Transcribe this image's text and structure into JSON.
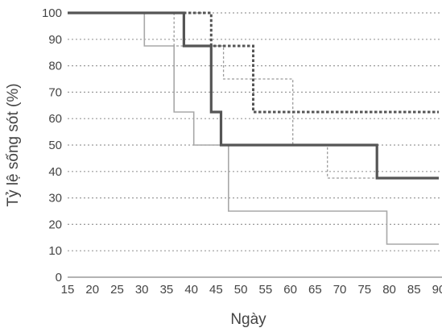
{
  "chart_data": {
    "type": "line",
    "step": true,
    "title": "",
    "xlabel": "Ngày",
    "ylabel": "Tỷ lệ sống sót (%)",
    "xlim": [
      15,
      90
    ],
    "ylim": [
      0,
      100
    ],
    "xticks": [
      15,
      20,
      25,
      30,
      35,
      40,
      45,
      50,
      55,
      60,
      65,
      70,
      75,
      80,
      85,
      90
    ],
    "yticks": [
      0,
      10,
      20,
      30,
      40,
      50,
      60,
      70,
      80,
      90,
      100
    ],
    "grid": "horizontal-dotted",
    "legend": "none",
    "series": [
      {
        "style": "solid-thick",
        "color": "#555555",
        "points": [
          [
            15,
            100
          ],
          [
            38.5,
            100
          ],
          [
            38.5,
            87.5
          ],
          [
            44,
            87.5
          ],
          [
            44,
            62.5
          ],
          [
            46,
            62.5
          ],
          [
            46,
            50
          ],
          [
            77.5,
            50
          ],
          [
            77.5,
            37.5
          ],
          [
            90,
            37.5
          ]
        ]
      },
      {
        "style": "dashed-thick",
        "color": "#555555",
        "points": [
          [
            15,
            100
          ],
          [
            44,
            100
          ],
          [
            44,
            87.5
          ],
          [
            52.5,
            87.5
          ],
          [
            52.5,
            62.5
          ],
          [
            90,
            62.5
          ]
        ]
      },
      {
        "style": "dashed-thin",
        "color": "#9a9a9a",
        "points": [
          [
            15,
            100
          ],
          [
            36.5,
            100
          ],
          [
            36.5,
            87.5
          ],
          [
            46.5,
            87.5
          ],
          [
            46.5,
            75
          ],
          [
            60.5,
            75
          ],
          [
            60.5,
            50
          ],
          [
            67.5,
            50
          ],
          [
            67.5,
            37.5
          ],
          [
            90,
            37.5
          ]
        ]
      },
      {
        "style": "solid-thin",
        "color": "#a8a8a8",
        "points": [
          [
            15,
            100
          ],
          [
            30.5,
            100
          ],
          [
            30.5,
            87.5
          ],
          [
            36.5,
            87.5
          ],
          [
            36.5,
            62.5
          ],
          [
            40.5,
            62.5
          ],
          [
            40.5,
            50
          ],
          [
            47.5,
            50
          ],
          [
            47.5,
            25
          ],
          [
            79.5,
            25
          ],
          [
            79.5,
            12.5
          ],
          [
            90,
            12.5
          ]
        ]
      }
    ]
  }
}
